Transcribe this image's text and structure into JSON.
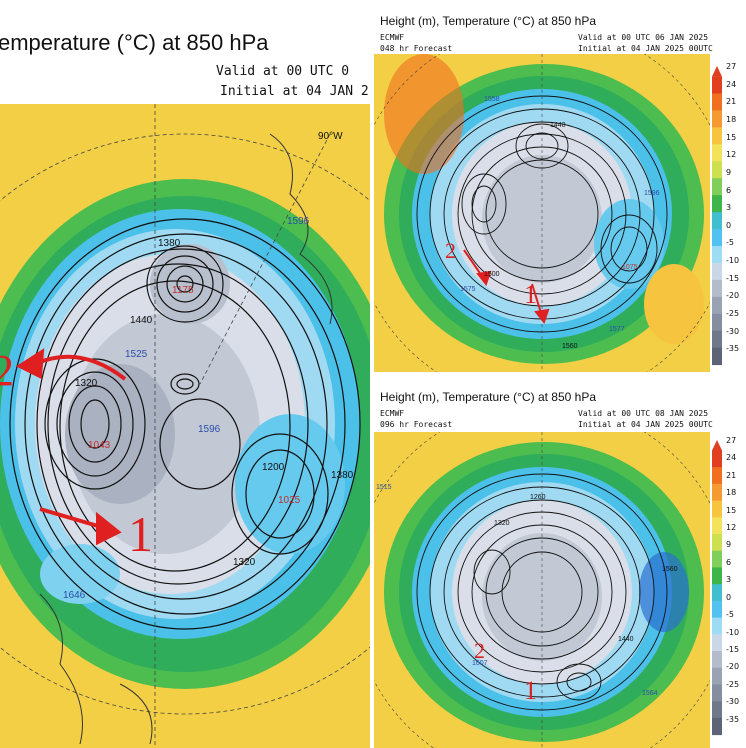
{
  "left_panel": {
    "title": "emperature (°C) at 850 hPa",
    "valid": "Valid at 00 UTC 0",
    "initial": "Initial at 04 JAN 2",
    "lon_label": "90°W",
    "highs": [
      {
        "label": "H",
        "value": "1596"
      },
      {
        "label": "H",
        "value": "1525"
      },
      {
        "label": "H",
        "value": "1596"
      },
      {
        "label": "H",
        "value": "1646"
      }
    ],
    "lows": [
      {
        "label": "L",
        "value": "1175"
      },
      {
        "label": "L",
        "value": "1025"
      },
      {
        "label": "L",
        "value": "1043"
      }
    ],
    "contour_labels": [
      "1380",
      "1440",
      "1500",
      "1320",
      "1440",
      "1200",
      "1380",
      "1500",
      "1440",
      "1320",
      "1380"
    ],
    "annotations": [
      "2",
      "1"
    ]
  },
  "top_right": {
    "title": "Height (m), Temperature (°C) at 850 hPa",
    "model": "ECMWF",
    "forecast": "048 hr Forecast",
    "valid": "Valid at 00 UTC 06 JAN 2025",
    "initial": "Initial at 04 JAN 2025 00UTC",
    "annotations": [
      "2",
      "1"
    ],
    "contour_labels": [
      "1440",
      "1500",
      "1560",
      "1440",
      "1500"
    ],
    "highs": [
      {
        "value": "1558"
      },
      {
        "value": "1596"
      },
      {
        "value": "1577"
      },
      {
        "value": "1575"
      }
    ],
    "lows": [
      {
        "value": "1075"
      }
    ]
  },
  "bottom_right": {
    "title": "Height (m), Temperature (°C) at 850 hPa",
    "model": "ECMWF",
    "forecast": "096 hr Forecast",
    "valid": "Valid at 00 UTC 08 JAN 2025",
    "initial": "Initial at 04 JAN 2025 00UTC",
    "annotations": [
      "2",
      "1"
    ],
    "contour_labels": [
      "1260",
      "1320",
      "1380",
      "1440",
      "1500",
      "1560",
      "1320",
      "1440"
    ],
    "highs": [
      {
        "value": "1607"
      },
      {
        "value": "1564"
      },
      {
        "value": "1515"
      }
    ],
    "lows": []
  },
  "colorbar": {
    "ticks": [
      "27",
      "24",
      "21",
      "18",
      "15",
      "12",
      "9",
      "6",
      "3",
      "0",
      "-5",
      "-10",
      "-15",
      "-20",
      "-25",
      "-30",
      "-35"
    ],
    "colors": [
      "#e04020",
      "#f07020",
      "#f59a30",
      "#f7c440",
      "#f3e35a",
      "#cde050",
      "#7fcf5a",
      "#3db54a",
      "#3fbfd0",
      "#52c3f0",
      "#9edcf5",
      "#c9d8e8",
      "#b3bccb",
      "#9aa3b3",
      "#858ea0",
      "#70788c",
      "#5d6478"
    ]
  }
}
